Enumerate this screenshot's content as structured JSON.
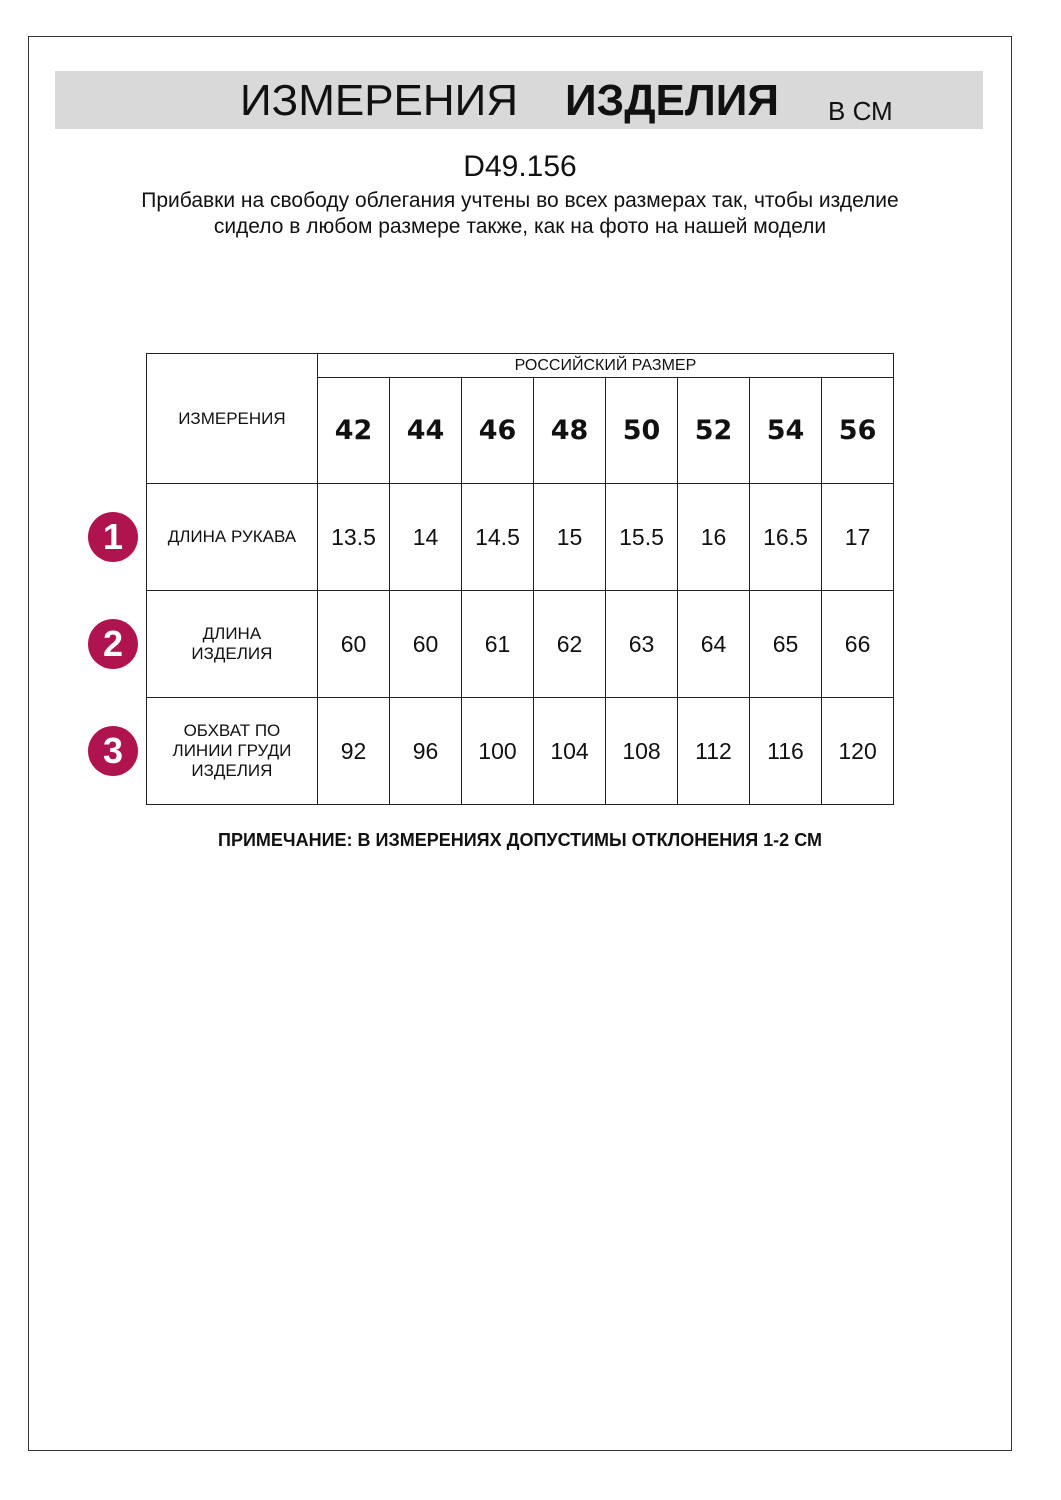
{
  "header": {
    "title_part1": "ИЗМЕРЕНИЯ",
    "title_part2": "ИЗДЕЛИЯ",
    "unit": "В СМ"
  },
  "product_code": "D49.156",
  "description": "Прибавки на свободу облегания учтены во всех размерах так, чтобы изделие сидело в любом размере также, как на фото на нашей модели",
  "table": {
    "corner_label": "ИЗМЕРЕНИЯ",
    "group_label": "РОССИЙСКИЙ РАЗМЕР",
    "sizes": [
      "42",
      "44",
      "46",
      "48",
      "50",
      "52",
      "54",
      "56"
    ],
    "rows": [
      {
        "badge": "1",
        "label": "ДЛИНА РУКАВА",
        "values": [
          "13.5",
          "14",
          "14.5",
          "15",
          "15.5",
          "16",
          "16.5",
          "17"
        ]
      },
      {
        "badge": "2",
        "label": "ДЛИНА ИЗДЕЛИЯ",
        "values": [
          "60",
          "60",
          "61",
          "62",
          "63",
          "64",
          "65",
          "66"
        ]
      },
      {
        "badge": "3",
        "label": "ОБХВАТ ПО ЛИНИИ ГРУДИ ИЗДЕЛИЯ",
        "values": [
          "92",
          "96",
          "100",
          "104",
          "108",
          "112",
          "116",
          "120"
        ]
      }
    ]
  },
  "note": "ПРИМЕЧАНИЕ: В ИЗМЕРЕНИЯХ ДОПУСТИМЫ ОТКЛОНЕНИЯ 1-2 СМ",
  "colors": {
    "badge": "#b0144f",
    "header_bg": "#d9d9d9"
  }
}
